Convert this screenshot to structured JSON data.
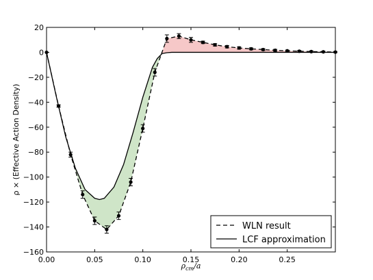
{
  "chart_data": {
    "type": "line",
    "xlabel_main": "ρ",
    "xlabel_sub": "cm",
    "xlabel_tail": "/a",
    "ylabel_main": "ρ × (Effective Action Density)",
    "xlim": [
      0.0,
      0.3
    ],
    "ylim": [
      -160,
      20
    ],
    "x_ticks": [
      0.0,
      0.05,
      0.1,
      0.15,
      0.2,
      0.25
    ],
    "x_tick_labels": [
      "0.00",
      "0.05",
      "0.10",
      "0.15",
      "0.20",
      "0.25"
    ],
    "y_ticks": [
      -160,
      -140,
      -120,
      -100,
      -80,
      -60,
      -40,
      -20,
      0,
      20
    ],
    "y_tick_labels": [
      "−160",
      "−140",
      "−120",
      "−100",
      "−80",
      "−60",
      "−40",
      "−20",
      "0",
      "20"
    ],
    "grid": false,
    "legend_position": "bottom-right",
    "series": [
      {
        "name": "WLN result",
        "style": "dashed",
        "color": "#000000",
        "x": [
          0.0,
          0.0125,
          0.025,
          0.0375,
          0.05,
          0.0625,
          0.075,
          0.0875,
          0.1,
          0.1125,
          0.125,
          0.1375,
          0.15,
          0.1625,
          0.175,
          0.1875,
          0.2,
          0.2125,
          0.225,
          0.2375,
          0.25,
          0.2625,
          0.275,
          0.2875,
          0.3
        ],
        "y": [
          0,
          -43,
          -82,
          -114,
          -135,
          -142,
          -131,
          -104,
          -61,
          -16,
          11,
          13,
          10,
          8,
          6,
          4.5,
          3.5,
          2.8,
          2.2,
          1.6,
          1.2,
          0.9,
          0.6,
          0.4,
          0.2
        ],
        "yerr": [
          0,
          1,
          2,
          3,
          3,
          3,
          3,
          3,
          3,
          3,
          3,
          2,
          2,
          1,
          1,
          1,
          1,
          0.8,
          0.8,
          0.8,
          0.6,
          0.6,
          0.6,
          0.5,
          0.5
        ]
      },
      {
        "name": "LCF approximation",
        "style": "solid",
        "color": "#000000",
        "x": [
          0.0,
          0.01,
          0.02,
          0.03,
          0.04,
          0.05,
          0.055,
          0.06,
          0.07,
          0.08,
          0.09,
          0.1,
          0.11,
          0.115,
          0.12,
          0.125,
          0.13,
          0.15,
          0.2,
          0.25,
          0.3
        ],
        "y": [
          0,
          -35,
          -68,
          -93,
          -110,
          -117,
          -118,
          -117,
          -108,
          -90,
          -64,
          -36,
          -12,
          -5,
          -1,
          -0.3,
          0,
          0,
          0,
          0,
          0
        ]
      }
    ],
    "fill_colors": {
      "below": "#cfe5c8",
      "above": "#f6c8c8"
    }
  },
  "legend": {
    "wln_label": "WLN result",
    "lcf_label": "LCF approximation"
  }
}
